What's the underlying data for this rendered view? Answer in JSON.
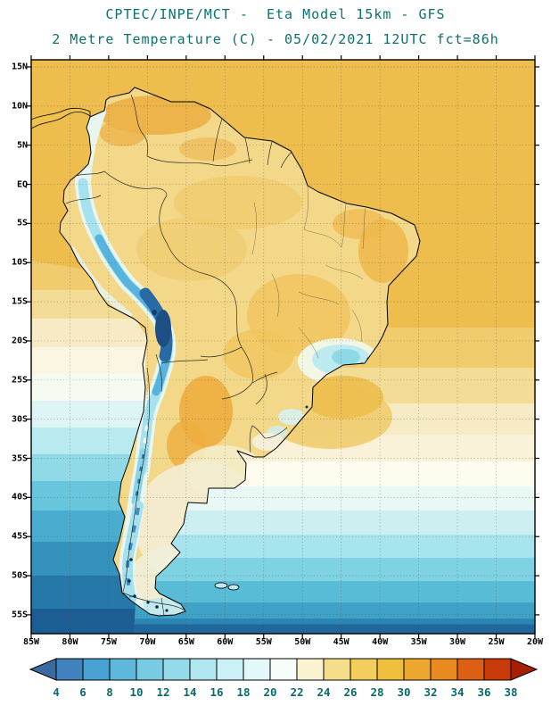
{
  "title": {
    "line1": "CPTEC/INPE/MCT -  Eta Model 15km - GFS",
    "line2": "2 Metre Temperature (C) - 05/02/2021 12UTC fct=86h",
    "color": "#0d7070"
  },
  "map": {
    "region": "South America",
    "lat_labels": [
      "15N",
      "10N",
      "5N",
      "EQ",
      "5S",
      "10S",
      "15S",
      "20S",
      "25S",
      "30S",
      "35S",
      "40S",
      "45S",
      "50S",
      "55S"
    ],
    "lon_labels": [
      "85W",
      "80W",
      "75W",
      "70W",
      "65W",
      "60W",
      "55W",
      "50W",
      "45W",
      "40W",
      "35W",
      "30W",
      "25W",
      "20W"
    ]
  },
  "colorbar": {
    "units": "C",
    "tick_labels": [
      "4",
      "6",
      "8",
      "10",
      "12",
      "14",
      "16",
      "18",
      "20",
      "22",
      "24",
      "26",
      "28",
      "30",
      "32",
      "34",
      "36",
      "38"
    ],
    "colors": [
      "#3B6AA0",
      "#3F82BE",
      "#49A0D2",
      "#5FB8DC",
      "#79CBE4",
      "#93DAEA",
      "#AFE6F0",
      "#CBF0F5",
      "#E3F8F8",
      "#F7FDF8",
      "#FAF3D2",
      "#F5DE8A",
      "#F2CE5C",
      "#EFBE3C",
      "#EDA72E",
      "#E88A20",
      "#DC5F14",
      "#C93A0A",
      "#A81E04"
    ],
    "label_color": "#0b6b6b"
  },
  "chart_data": {
    "type": "heatmap",
    "title": "2 Metre Temperature (C)",
    "institution": "CPTEC/INPE/MCT",
    "model": "Eta Model 15km - GFS",
    "valid_time": "05/02/2021 12UTC",
    "forecast_hour": "fct=86h",
    "region": "South America",
    "x_ticks": [
      "85W",
      "80W",
      "75W",
      "70W",
      "65W",
      "60W",
      "55W",
      "50W",
      "45W",
      "40W",
      "35W",
      "30W",
      "25W",
      "20W"
    ],
    "y_ticks": [
      "15N",
      "10N",
      "5N",
      "EQ",
      "5S",
      "10S",
      "15S",
      "20S",
      "25S",
      "30S",
      "35S",
      "40S",
      "45S",
      "50S",
      "55S"
    ],
    "scale": {
      "units": "C",
      "min": 4,
      "max": 38,
      "step": 2
    },
    "readings": [
      {
        "area": "Tropical Atlantic / Caribbean",
        "approx_C": "26-30"
      },
      {
        "area": "Amazon basin",
        "approx_C": "24-28"
      },
      {
        "area": "Northeast Brazil interior",
        "approx_C": "28-32"
      },
      {
        "area": "Llanos Venezuela/Colombia",
        "approx_C": "28-32"
      },
      {
        "area": "Andes / Altiplano (10S-25S)",
        "approx_C": "4-10"
      },
      {
        "area": "Southeast Brazil highlands",
        "approx_C": "14-18"
      },
      {
        "area": "Northern-central Argentina (Chaco)",
        "approx_C": "28-32"
      },
      {
        "area": "Pampas / Uruguay",
        "approx_C": "20-24"
      },
      {
        "area": "Patagonia",
        "approx_C": "8-16"
      },
      {
        "area": "Tierra del Fuego",
        "approx_C": "4-6"
      },
      {
        "area": "South Atlantic 40S",
        "approx_C": "14-18"
      },
      {
        "area": "Southern Ocean 55S",
        "approx_C": "4-8"
      }
    ]
  }
}
